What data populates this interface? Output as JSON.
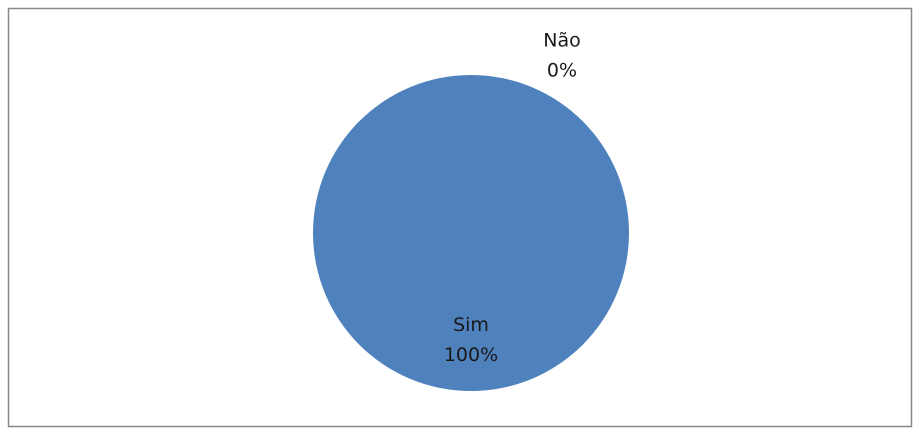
{
  "chart_data": {
    "type": "pie",
    "categories": [
      "Sim",
      "Não"
    ],
    "values": [
      100,
      0
    ],
    "value_labels": [
      "100%",
      "0%"
    ],
    "color": "#4f81bd"
  }
}
